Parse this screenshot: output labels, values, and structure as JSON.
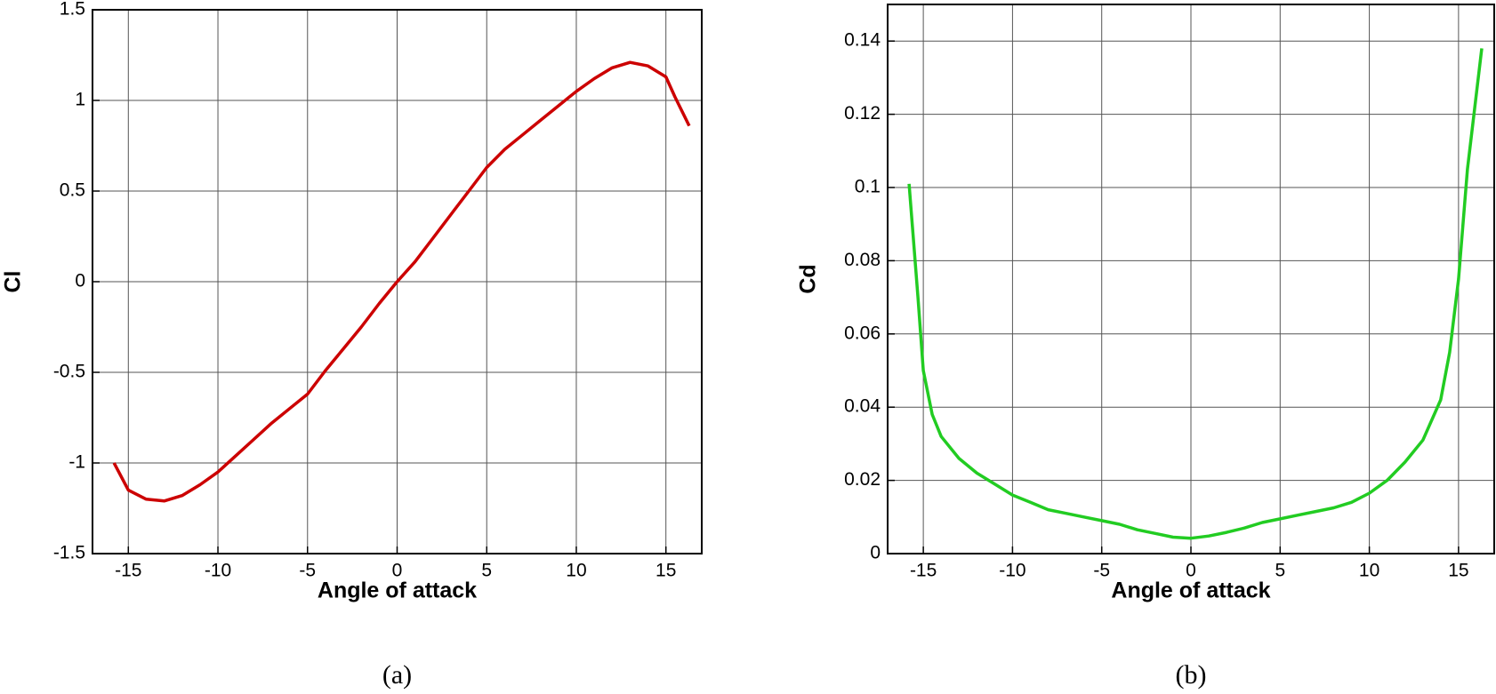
{
  "chart_data": [
    {
      "type": "line",
      "caption": "(a)",
      "x_label": "Angle of attack",
      "y_label": "Cl",
      "color": "#cc0000",
      "grid": true,
      "xlim": [
        -17,
        17
      ],
      "xticks": [
        -15,
        -10,
        -5,
        0,
        5,
        10,
        15
      ],
      "ylim": [
        -1.5,
        1.5
      ],
      "yticks": [
        -1.5,
        -1,
        -0.5,
        0,
        0.5,
        1,
        1.5
      ],
      "x": [
        -15.8,
        -15,
        -14,
        -13,
        -12,
        -11,
        -10,
        -9,
        -8,
        -7,
        -6,
        -5,
        -4,
        -3,
        -2,
        -1,
        0,
        1,
        2,
        3,
        4,
        5,
        6,
        7,
        8,
        9,
        10,
        11,
        12,
        13,
        14,
        15,
        15.5,
        16.3
      ],
      "values": [
        -1.0,
        -1.15,
        -1.2,
        -1.21,
        -1.18,
        -1.12,
        -1.05,
        -0.96,
        -0.87,
        -0.78,
        -0.7,
        -0.62,
        -0.49,
        -0.37,
        -0.25,
        -0.12,
        0,
        0.11,
        0.24,
        0.37,
        0.5,
        0.63,
        0.73,
        0.81,
        0.89,
        0.97,
        1.05,
        1.12,
        1.18,
        1.21,
        1.19,
        1.13,
        1.02,
        0.86
      ]
    },
    {
      "type": "line",
      "caption": "(b)",
      "x_label": "Angle of attack",
      "y_label": "Cd",
      "color": "#22cc22",
      "grid": true,
      "xlim": [
        -17,
        17
      ],
      "xticks": [
        -15,
        -10,
        -5,
        0,
        5,
        10,
        15
      ],
      "ylim": [
        0,
        0.15
      ],
      "yticks": [
        0,
        0.02,
        0.04,
        0.06,
        0.08,
        0.1,
        0.12,
        0.14
      ],
      "x": [
        -15.8,
        -15.3,
        -15,
        -14.5,
        -14,
        -13,
        -12,
        -11,
        -10,
        -9,
        -8,
        -7,
        -6,
        -5,
        -4,
        -3,
        -2,
        -1,
        0,
        1,
        2,
        3,
        4,
        5,
        6,
        7,
        8,
        9,
        10,
        11,
        12,
        13,
        14,
        14.5,
        15,
        15.5,
        16.3
      ],
      "values": [
        0.101,
        0.07,
        0.05,
        0.038,
        0.032,
        0.026,
        0.022,
        0.019,
        0.016,
        0.014,
        0.012,
        0.011,
        0.01,
        0.009,
        0.008,
        0.0065,
        0.0055,
        0.0045,
        0.0042,
        0.0048,
        0.0058,
        0.007,
        0.0085,
        0.0095,
        0.0105,
        0.0115,
        0.0125,
        0.014,
        0.0165,
        0.02,
        0.025,
        0.031,
        0.042,
        0.055,
        0.075,
        0.105,
        0.138
      ]
    }
  ]
}
